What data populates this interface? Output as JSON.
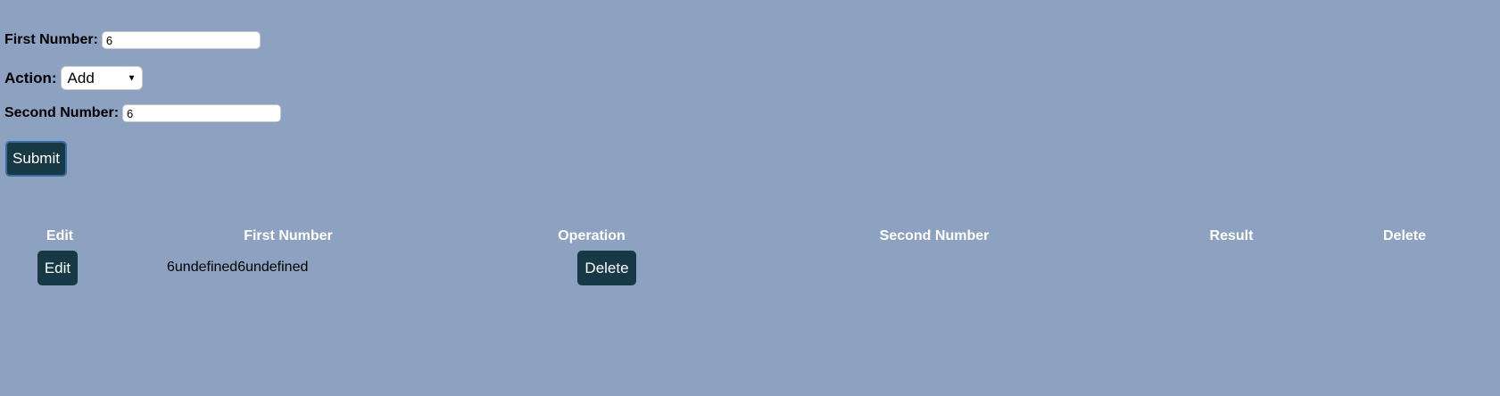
{
  "form": {
    "first_number_label": "First Number:",
    "first_number_value": "6",
    "action_label": "Action:",
    "action_selected": "Add",
    "action_arrow": "▼",
    "second_number_label": "Second Number:",
    "second_number_value": "6",
    "submit_label": "Submit"
  },
  "table": {
    "headers": [
      "Edit",
      "First Number",
      "Operation",
      "Second Number",
      "Result",
      "Delete"
    ],
    "rows": [
      {
        "edit_label": "Edit",
        "text": "6undefined6undefined",
        "delete_label": "Delete"
      }
    ]
  },
  "colors": {
    "background": "#8da1c1",
    "button": "#173845",
    "header_text": "#ffffff"
  }
}
